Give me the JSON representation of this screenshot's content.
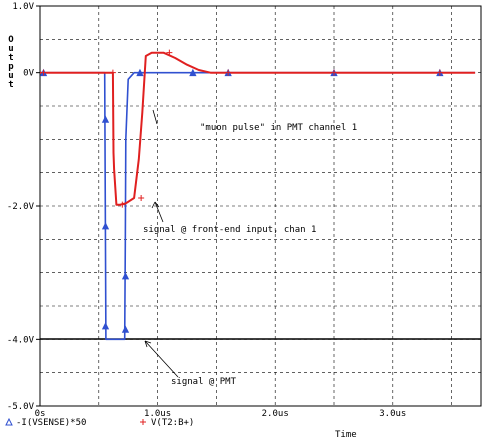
{
  "chart_data": {
    "type": "line",
    "ylabel": "Output",
    "xlabel": "Time",
    "xlim": [
      0,
      3.75
    ],
    "ylim": [
      -5.0,
      1.0
    ],
    "grid": true,
    "x_ticks": [
      {
        "value": 0,
        "label": "0s"
      },
      {
        "value": 1.0,
        "label": "1.0us"
      },
      {
        "value": 2.0,
        "label": "2.0us"
      },
      {
        "value": 3.0,
        "label": "3.0us"
      }
    ],
    "y_ticks": [
      {
        "value": 1.0,
        "label": "1.0V"
      },
      {
        "value": 0,
        "label": "0V"
      },
      {
        "value": -2.0,
        "label": "-2.0V"
      },
      {
        "value": -4.0,
        "label": "-4.0V"
      },
      {
        "value": -5.0,
        "label": "-5.0V"
      }
    ],
    "series": [
      {
        "name": "-I(VSENSE)*50",
        "color": "#3050d0",
        "marker": "triangle",
        "x": [
          0,
          0.55,
          0.555,
          0.56,
          0.72,
          0.725,
          0.73,
          0.75,
          0.8,
          0.85,
          0.95,
          1.2,
          1.6,
          2.5,
          3.4,
          3.7
        ],
        "y": [
          0,
          0,
          -2.0,
          -4.0,
          -4.0,
          -2.6,
          -1.0,
          -0.1,
          0,
          0,
          0,
          0,
          0,
          0,
          0,
          0
        ]
      },
      {
        "name": "V(T2:B+)",
        "color": "#e02020",
        "marker": "plus",
        "x": [
          0,
          0.62,
          0.625,
          0.63,
          0.65,
          0.68,
          0.73,
          0.8,
          0.84,
          0.87,
          0.9,
          0.95,
          1.05,
          1.15,
          1.25,
          1.35,
          1.45,
          1.6,
          2.5,
          3.4,
          3.7
        ],
        "y": [
          0,
          0,
          -1.2,
          -1.45,
          -1.98,
          -1.98,
          -1.96,
          -1.88,
          -1.3,
          -0.6,
          0.25,
          0.3,
          0.3,
          0.22,
          0.12,
          0.04,
          0.0,
          0,
          0,
          0,
          0
        ]
      }
    ],
    "annotations": [
      {
        "text": "\"muon pulse\" in PMT channel 1"
      },
      {
        "text": "signal @ front-end input, chan 1"
      },
      {
        "text": "signal @ PMT"
      }
    ]
  }
}
